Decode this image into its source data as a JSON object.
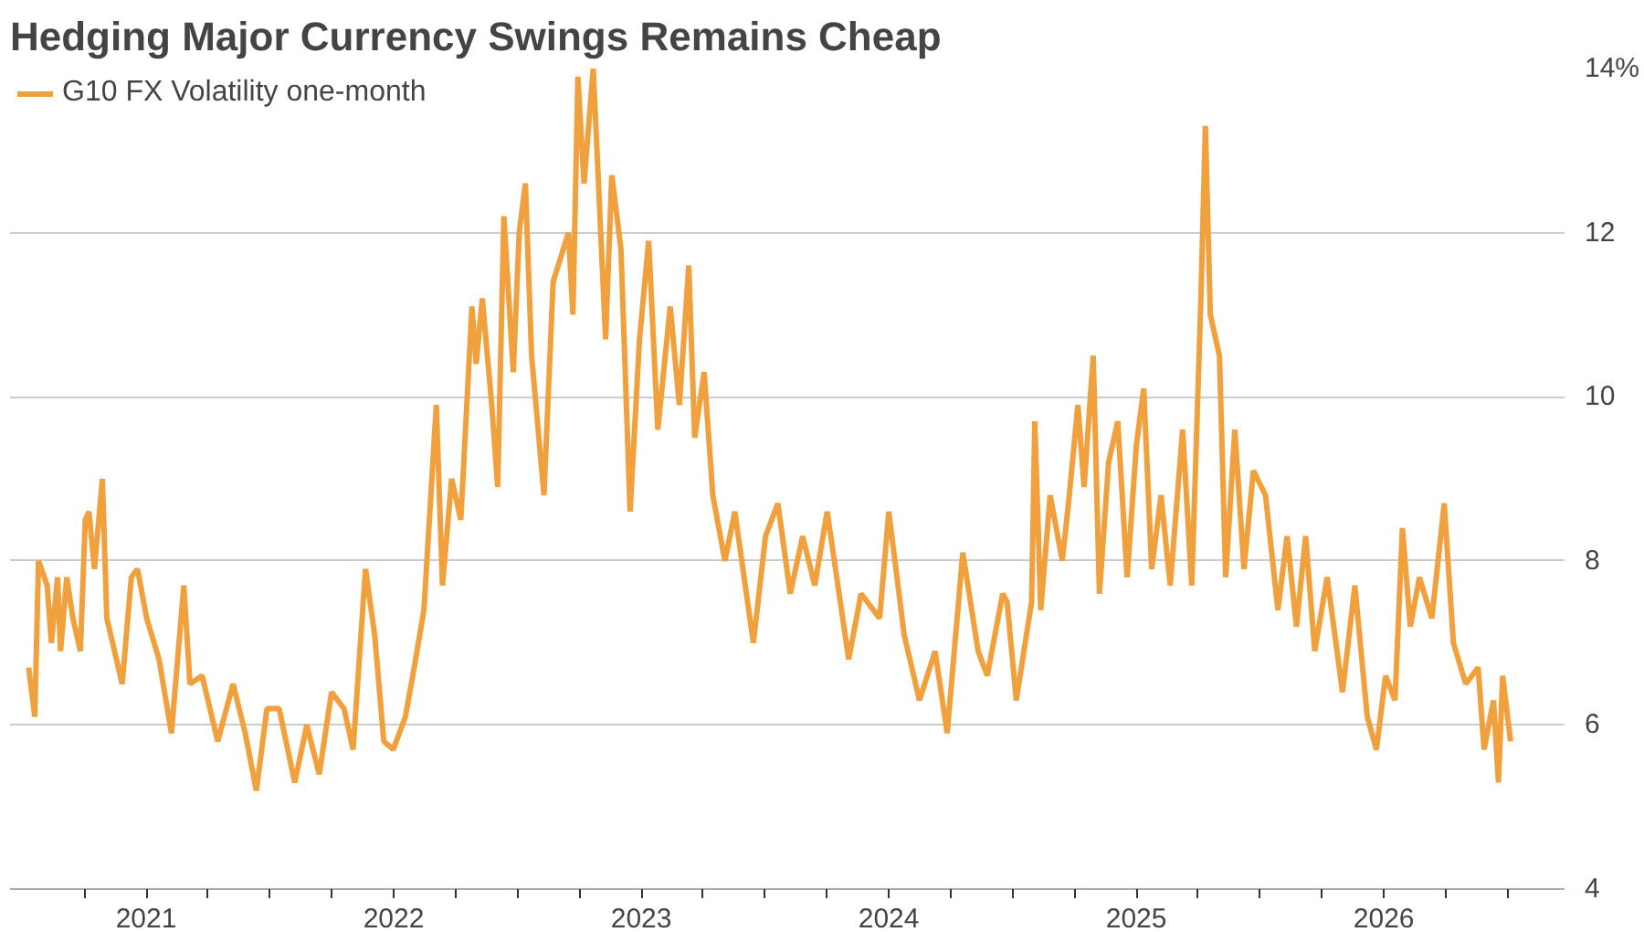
{
  "chart_data": {
    "type": "line",
    "title": "Hedging Major Currency Swings Remains Cheap",
    "series": [
      {
        "name": "G10 FX Volatility one-month",
        "color": "#f0a03c",
        "x": [
          2020.525,
          2020.55,
          2020.565,
          2020.6,
          2020.617,
          2020.642,
          2020.654,
          2020.679,
          2020.704,
          2020.734,
          2020.754,
          2020.769,
          2020.791,
          2020.823,
          2020.841,
          2020.903,
          2020.94,
          2020.965,
          2021.002,
          2021.052,
          2021.102,
          2021.152,
          2021.177,
          2021.226,
          2021.289,
          2021.351,
          2021.4,
          2021.445,
          2021.488,
          2021.537,
          2021.6,
          2021.649,
          2021.699,
          2021.749,
          2021.799,
          2021.836,
          2021.886,
          2021.923,
          2021.96,
          2021.998,
          2022.047,
          2022.077,
          2022.122,
          2022.172,
          2022.197,
          2022.234,
          2022.271,
          2022.316,
          2022.333,
          2022.358,
          2022.396,
          2022.42,
          2022.445,
          2022.483,
          2022.507,
          2022.532,
          2022.557,
          2022.607,
          2022.644,
          2022.706,
          2022.724,
          2022.744,
          2022.769,
          2022.806,
          2022.856,
          2022.881,
          2022.918,
          2022.955,
          2022.993,
          2023.03,
          2023.067,
          2023.117,
          2023.154,
          2023.192,
          2023.216,
          2023.254,
          2023.289,
          2023.338,
          2023.378,
          2023.453,
          2023.502,
          2023.552,
          2023.602,
          2023.652,
          2023.701,
          2023.751,
          2023.838,
          2023.888,
          2023.963,
          2024.0,
          2024.062,
          2024.124,
          2024.187,
          2024.236,
          2024.299,
          2024.361,
          2024.398,
          2024.46,
          2024.478,
          2024.515,
          2024.577,
          2024.59,
          2024.614,
          2024.652,
          2024.701,
          2024.726,
          2024.764,
          2024.789,
          2024.826,
          2024.851,
          2024.888,
          2024.925,
          2024.963,
          2025.0,
          2025.03,
          2025.062,
          2025.1,
          2025.137,
          2025.187,
          2025.224,
          2025.261,
          2025.279,
          2025.299,
          2025.336,
          2025.361,
          2025.398,
          2025.435,
          2025.473,
          2025.522,
          2025.572,
          2025.609,
          2025.647,
          2025.684,
          2025.721,
          2025.771,
          2025.833,
          2025.883,
          2025.933,
          2025.97,
          2026.007,
          2026.045,
          2026.075,
          2026.107,
          2026.144,
          2026.194,
          2026.244,
          2026.281,
          2026.331,
          2026.381,
          2026.405,
          2026.443,
          2026.463,
          2026.48,
          2026.512
        ],
        "values": [
          6.7,
          6.1,
          8.0,
          7.7,
          7.0,
          7.8,
          6.9,
          7.8,
          7.3,
          6.9,
          8.5,
          8.6,
          7.9,
          9.0,
          7.3,
          6.5,
          7.8,
          7.9,
          7.3,
          6.8,
          5.9,
          7.7,
          6.5,
          6.6,
          5.8,
          6.5,
          5.9,
          5.2,
          6.2,
          6.2,
          5.3,
          6.0,
          5.4,
          6.4,
          6.2,
          5.7,
          7.9,
          7.1,
          5.8,
          5.7,
          6.1,
          6.6,
          7.4,
          9.9,
          7.7,
          9.0,
          8.5,
          11.1,
          10.4,
          11.2,
          9.9,
          8.9,
          12.2,
          10.3,
          12.0,
          12.6,
          10.5,
          8.8,
          11.4,
          12.0,
          11.0,
          13.9,
          12.6,
          14.0,
          10.7,
          12.7,
          11.8,
          8.6,
          10.7,
          11.9,
          9.6,
          11.1,
          9.9,
          11.6,
          9.5,
          10.3,
          8.8,
          8.0,
          8.6,
          7.0,
          8.3,
          8.7,
          7.6,
          8.3,
          7.7,
          8.6,
          6.8,
          7.6,
          7.3,
          8.6,
          7.1,
          6.3,
          6.9,
          5.9,
          8.1,
          6.9,
          6.6,
          7.6,
          7.5,
          6.3,
          7.5,
          9.7,
          7.4,
          8.8,
          8.0,
          8.7,
          9.9,
          8.9,
          10.5,
          7.6,
          9.2,
          9.7,
          7.8,
          9.4,
          10.1,
          7.9,
          8.8,
          7.7,
          9.6,
          7.7,
          11.2,
          13.3,
          11.0,
          10.5,
          7.8,
          9.6,
          7.9,
          9.1,
          8.8,
          7.4,
          8.3,
          7.2,
          8.3,
          6.9,
          7.8,
          6.4,
          7.7,
          6.1,
          5.7,
          6.6,
          6.3,
          8.4,
          7.2,
          7.8,
          7.3,
          8.7,
          7.0,
          6.5,
          6.7,
          5.7,
          6.3,
          5.3,
          6.6,
          5.8
        ]
      }
    ],
    "xlim": [
      2020.45,
      2026.73
    ],
    "xticks": [
      {
        "value": 2020.75,
        "label": null
      },
      2021,
      {
        "value": 2021.25,
        "label": null
      },
      {
        "value": 2021.5,
        "label": null
      },
      {
        "value": 2021.75,
        "label": null
      },
      2022,
      {
        "value": 2022.25,
        "label": null
      },
      {
        "value": 2022.5,
        "label": null
      },
      {
        "value": 2022.75,
        "label": null
      },
      2023,
      {
        "value": 2023.25,
        "label": null
      },
      {
        "value": 2023.5,
        "label": null
      },
      {
        "value": 2023.75,
        "label": null
      },
      2024,
      {
        "value": 2024.25,
        "label": null
      },
      {
        "value": 2024.5,
        "label": null
      },
      {
        "value": 2024.75,
        "label": null
      },
      2025,
      {
        "value": 2025.25,
        "label": null
      },
      {
        "value": 2025.5,
        "label": null
      },
      {
        "value": 2025.75,
        "label": null
      },
      2026,
      {
        "value": 2026.25,
        "label": null
      },
      {
        "value": 2026.5,
        "label": null
      }
    ],
    "ylim": [
      4,
      14
    ],
    "yticks": [
      4,
      6,
      8,
      10,
      12,
      {
        "value": 14,
        "label": "14%"
      }
    ],
    "grid": "y",
    "legend": "top left",
    "line_style": "solid"
  }
}
